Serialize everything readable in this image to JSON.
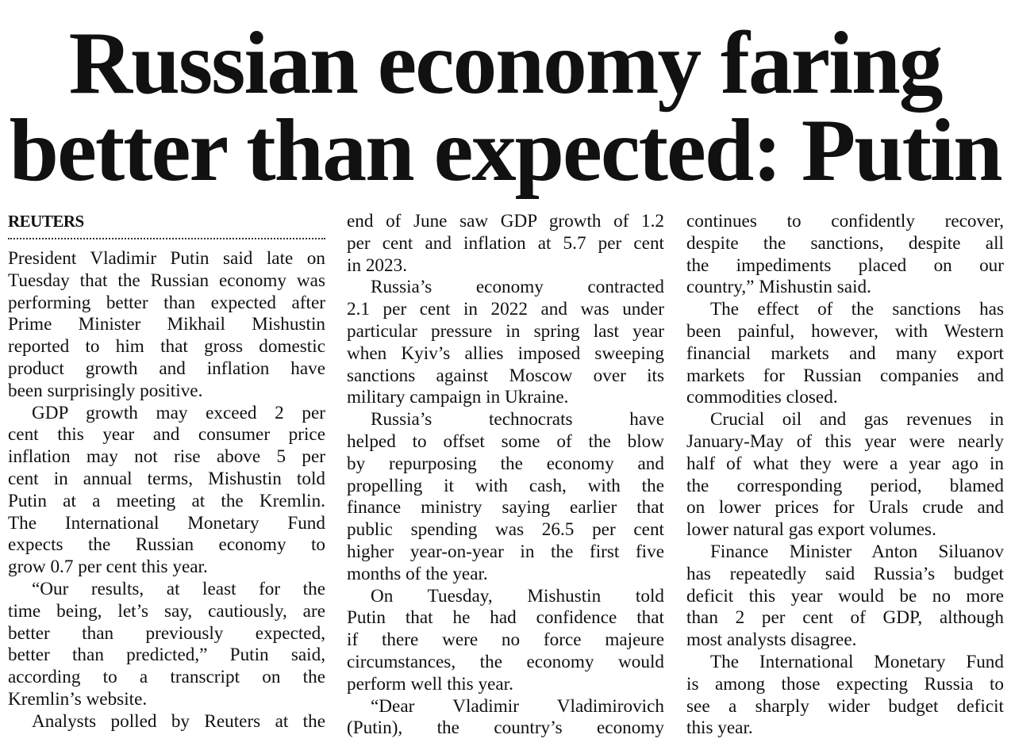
{
  "headline": {
    "line1": "Russian economy faring",
    "line2": "better than expected: Putin"
  },
  "byline": "REUTERS",
  "columns": [
    {
      "paragraphs": [
        {
          "indent": false,
          "continues": false,
          "lines": [
            "President Vladimir Putin said late on",
            "Tuesday that the Russian economy was",
            "performing better than expected after",
            "Prime Minister Mikhail Mishustin",
            "reported to him that gross domestic",
            "product growth and inflation have",
            "been surprisingly positive."
          ]
        },
        {
          "indent": true,
          "continues": false,
          "lines": [
            "GDP growth may exceed 2 per",
            "cent this year and consumer price",
            "inflation may not rise above 5 per",
            "cent in annual terms, Mishustin told",
            "Putin at a meeting at the Kremlin.",
            "The International Monetary Fund",
            "expects the Russian economy to",
            "grow 0.7 per cent this year."
          ]
        },
        {
          "indent": true,
          "continues": false,
          "lines": [
            "“Our results, at least for the",
            "time being, let’s say, cautiously, are",
            "better than previously expected,",
            "better than predicted,” Putin said,",
            "according to a transcript on the",
            "Kremlin’s website."
          ]
        },
        {
          "indent": true,
          "continues": true,
          "lines": [
            "Analysts polled by Reuters at the"
          ]
        }
      ]
    },
    {
      "paragraphs": [
        {
          "indent": false,
          "continues": false,
          "lines": [
            "end of June saw GDP growth of 1.2",
            "per cent and inflation at 5.7 per cent",
            "in 2023."
          ]
        },
        {
          "indent": true,
          "continues": false,
          "lines": [
            "Russia’s economy contracted",
            "2.1 per cent in 2022 and was under",
            "particular pressure in spring last year",
            "when Kyiv’s allies imposed sweeping",
            "sanctions against Moscow over its",
            "military campaign in Ukraine."
          ]
        },
        {
          "indent": true,
          "continues": false,
          "lines": [
            "Russia’s technocrats have",
            "helped to offset some of the blow",
            "by repurposing the economy and",
            "propelling it with cash, with the",
            "finance ministry saying earlier that",
            "public spending was 26.5 per cent",
            "higher year-on-year in the first five",
            "months of the year."
          ]
        },
        {
          "indent": true,
          "continues": false,
          "lines": [
            "On Tuesday, Mishustin told",
            "Putin that he had confidence that",
            "if there were no force majeure",
            "circumstances, the economy would",
            "perform well this year."
          ]
        },
        {
          "indent": true,
          "continues": true,
          "lines": [
            "“Dear Vladimir Vladimirovich",
            "(Putin), the country’s economy"
          ]
        }
      ]
    },
    {
      "paragraphs": [
        {
          "indent": false,
          "continues": false,
          "lines": [
            "continues to confidently recover,",
            "despite the sanctions, despite all",
            "the impediments placed on our",
            "country,” Mishustin said."
          ]
        },
        {
          "indent": true,
          "continues": false,
          "lines": [
            "The effect of the sanctions has",
            "been painful, however, with Western",
            "financial markets and many export",
            "markets for Russian companies and",
            "commodities closed."
          ]
        },
        {
          "indent": true,
          "continues": false,
          "lines": [
            "Crucial oil and gas revenues in",
            "January-May of this year were nearly",
            "half of what they were a year ago in",
            "the corresponding period, blamed",
            "on lower prices for Urals crude and",
            "lower natural gas export volumes."
          ]
        },
        {
          "indent": true,
          "continues": false,
          "lines": [
            "Finance Minister Anton Siluanov",
            "has repeatedly said Russia’s budget",
            "deficit this year would be no more",
            "than 2 per cent of GDP, although",
            "most analysts disagree."
          ]
        },
        {
          "indent": true,
          "continues": false,
          "lines": [
            "The International Monetary Fund",
            "is among those expecting Russia to",
            "see a sharply wider budget deficit",
            "this year."
          ]
        }
      ]
    }
  ]
}
